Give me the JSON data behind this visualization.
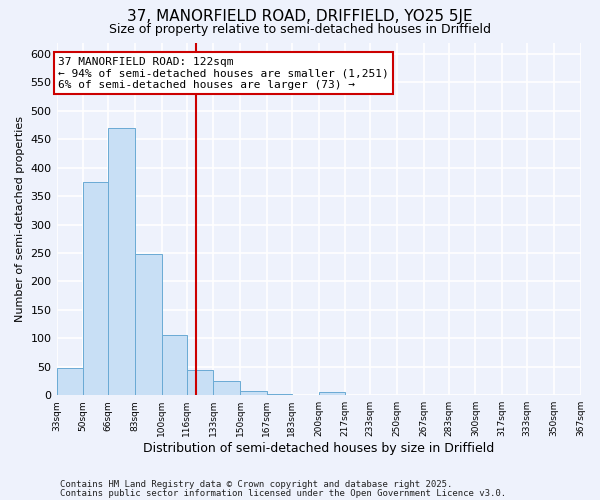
{
  "title": "37, MANORFIELD ROAD, DRIFFIELD, YO25 5JE",
  "subtitle": "Size of property relative to semi-detached houses in Driffield",
  "xlabel": "Distribution of semi-detached houses by size in Driffield",
  "ylabel": "Number of semi-detached properties",
  "bins": [
    33,
    50,
    66,
    83,
    100,
    116,
    133,
    150,
    167,
    183,
    200,
    217,
    233,
    250,
    267,
    283,
    300,
    317,
    333,
    350,
    367
  ],
  "counts": [
    47,
    375,
    470,
    248,
    105,
    45,
    25,
    8,
    2,
    0,
    5,
    0,
    0,
    0,
    0,
    0,
    0,
    0,
    1,
    0,
    3
  ],
  "bar_color": "#c8dff5",
  "bar_edge_color": "#6aaad4",
  "property_size": 122,
  "property_line_color": "#cc0000",
  "annotation_line1": "37 MANORFIELD ROAD: 122sqm",
  "annotation_line2": "← 94% of semi-detached houses are smaller (1,251)",
  "annotation_line3": "6% of semi-detached houses are larger (73) →",
  "annotation_box_color": "#ffffff",
  "annotation_box_edge_color": "#cc0000",
  "ylim": [
    0,
    620
  ],
  "yticks": [
    0,
    50,
    100,
    150,
    200,
    250,
    300,
    350,
    400,
    450,
    500,
    550,
    600
  ],
  "tick_labels": [
    "33sqm",
    "50sqm",
    "66sqm",
    "83sqm",
    "100sqm",
    "116sqm",
    "133sqm",
    "150sqm",
    "167sqm",
    "183sqm",
    "200sqm",
    "217sqm",
    "233sqm",
    "250sqm",
    "267sqm",
    "283sqm",
    "300sqm",
    "317sqm",
    "333sqm",
    "350sqm",
    "367sqm"
  ],
  "footer_line1": "Contains HM Land Registry data © Crown copyright and database right 2025.",
  "footer_line2": "Contains public sector information licensed under the Open Government Licence v3.0.",
  "background_color": "#eef2fc",
  "grid_color": "#ffffff",
  "title_fontsize": 11,
  "subtitle_fontsize": 9
}
